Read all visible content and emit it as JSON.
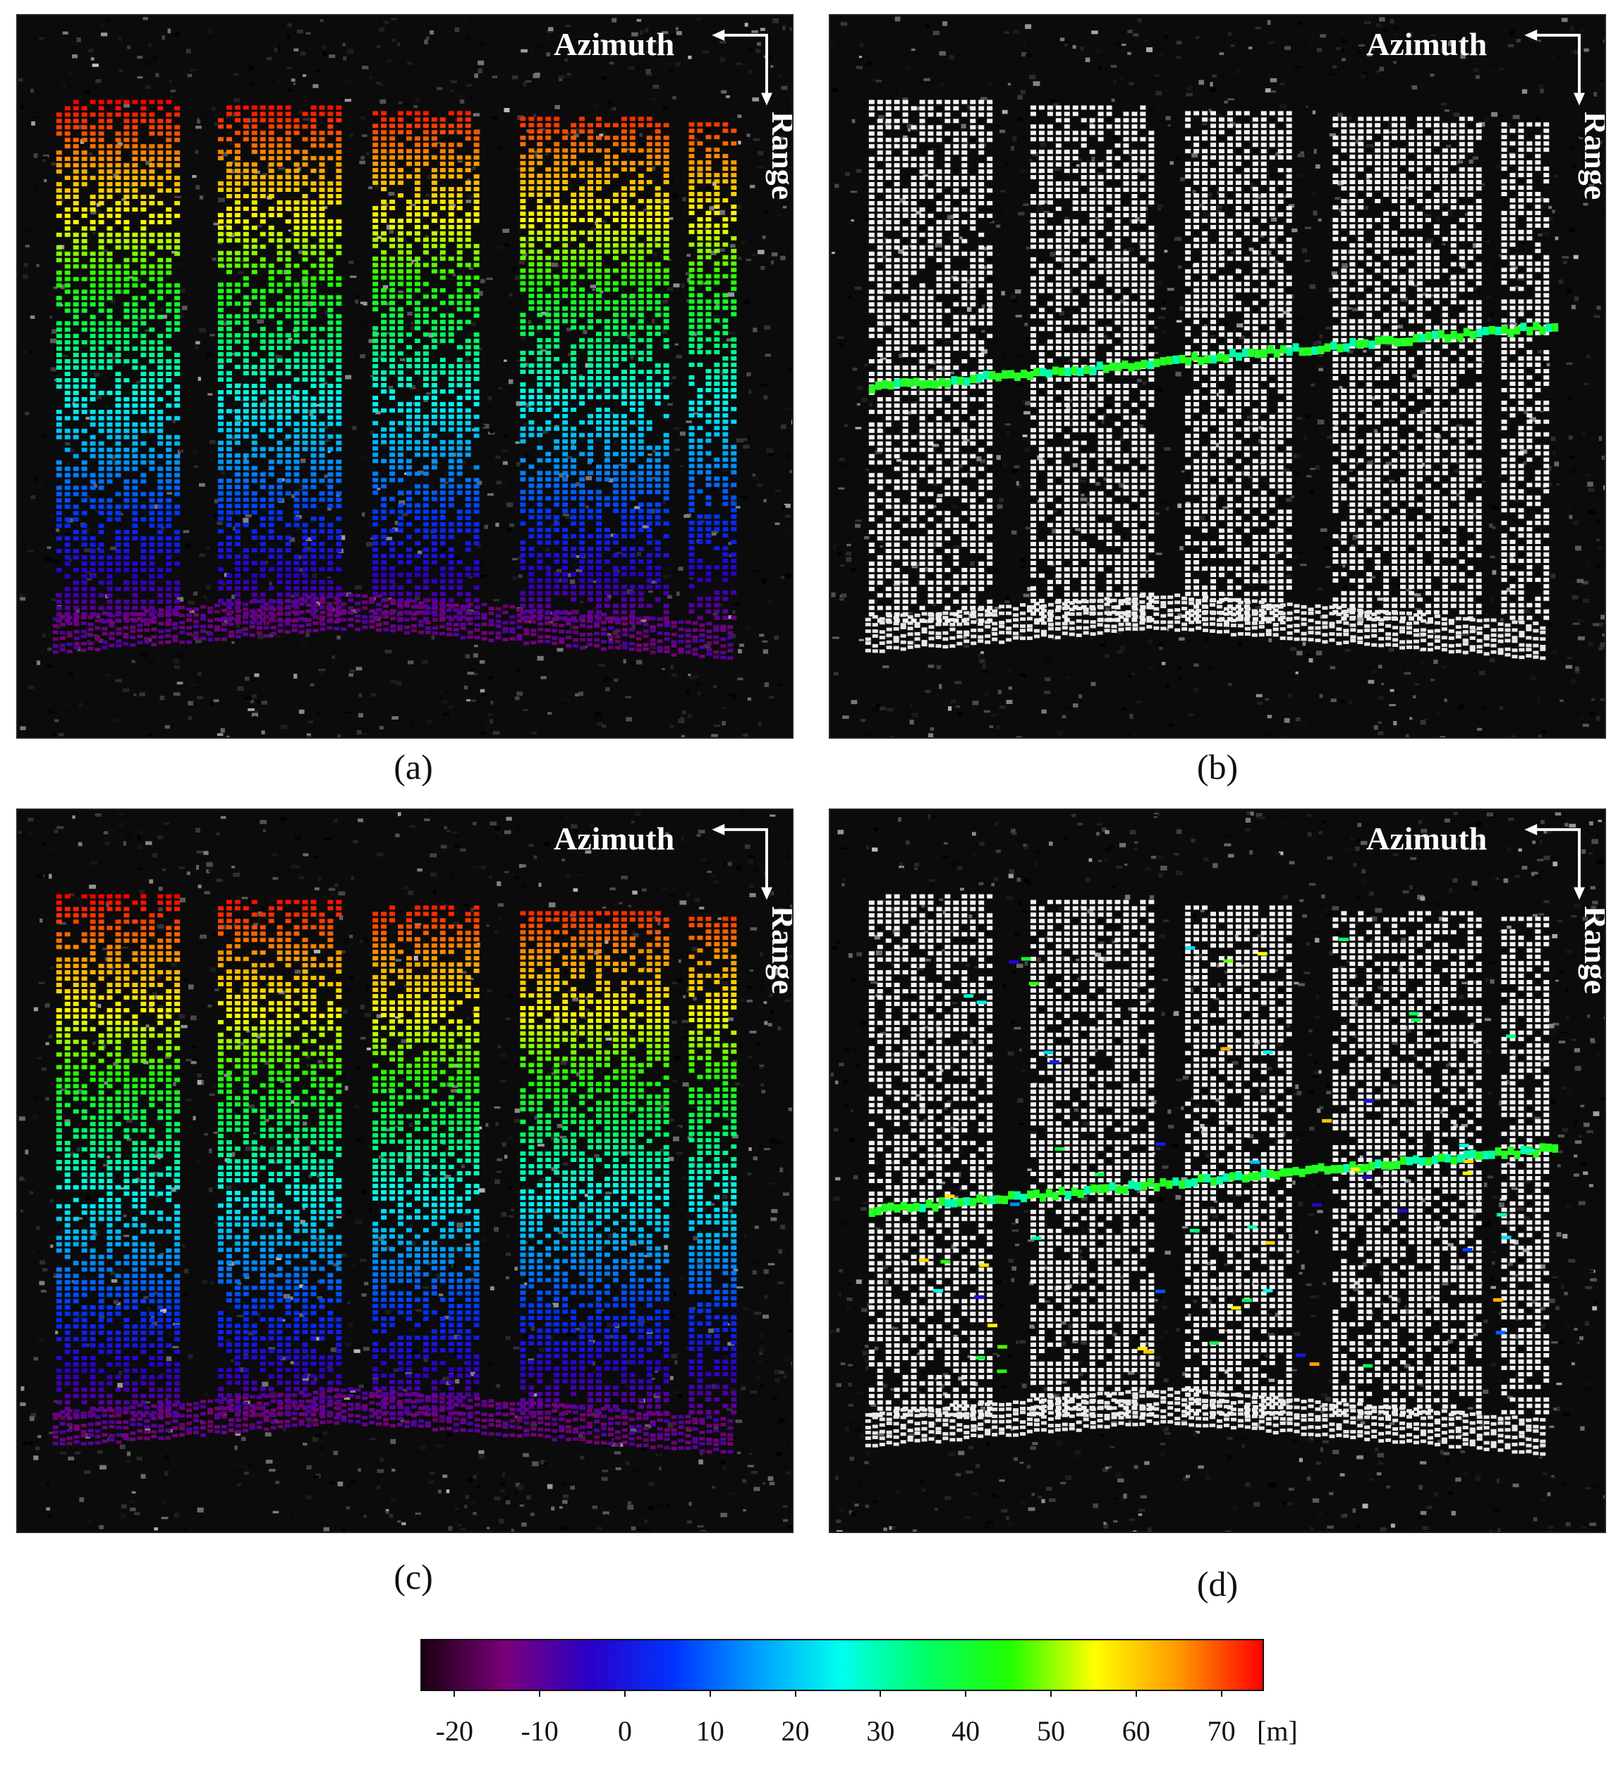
{
  "panels": [
    {
      "id": "a",
      "caption": "(a)",
      "azimuth": "Azimuth",
      "range": "Range",
      "mode": "full"
    },
    {
      "id": "b",
      "caption": "(b)",
      "azimuth": "Azimuth",
      "range": "Range",
      "mode": "band"
    },
    {
      "id": "c",
      "caption": "(c)",
      "azimuth": "Azimuth",
      "range": "Range",
      "mode": "full"
    },
    {
      "id": "d",
      "caption": "(d)",
      "azimuth": "Azimuth",
      "range": "Range",
      "mode": "band2"
    }
  ],
  "colorbar": {
    "ticks": [
      "-20",
      "-10",
      "0",
      "10",
      "20",
      "30",
      "40",
      "50",
      "60",
      "70"
    ],
    "tick_values": [
      -20,
      -10,
      0,
      10,
      20,
      30,
      40,
      50,
      60,
      70
    ],
    "range": [
      -24,
      75
    ],
    "unit": "[m]",
    "colors": [
      "#1a0010",
      "#7a007a",
      "#2a00c8",
      "#0033ff",
      "#00a0ff",
      "#00ffee",
      "#00ff66",
      "#22ff00",
      "#ffff00",
      "#ff9900",
      "#ff0000"
    ]
  }
}
